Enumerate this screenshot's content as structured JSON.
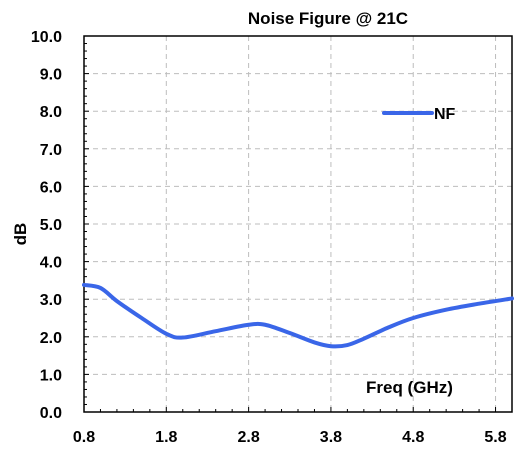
{
  "chart_data": {
    "type": "line",
    "title": "Noise Figure  @ 21C",
    "xlabel": "Freq (GHz)",
    "ylabel": "dB",
    "xlim": [
      0.8,
      6.0
    ],
    "ylim": [
      0.0,
      10.0
    ],
    "x_ticks": [
      0.8,
      1.8,
      2.8,
      3.8,
      4.8,
      5.8
    ],
    "x_tick_labels": [
      "0.8",
      "1.8",
      "2.8",
      "3.8",
      "4.8",
      "5.8"
    ],
    "y_ticks": [
      0,
      1,
      2,
      3,
      4,
      5,
      6,
      7,
      8,
      9,
      10
    ],
    "y_tick_labels": [
      "0.0",
      "1.0",
      "2.0",
      "3.0",
      "4.0",
      "5.0",
      "6.0",
      "7.0",
      "8.0",
      "9.0",
      "10.0"
    ],
    "grid": true,
    "legend": "top-right",
    "series": [
      {
        "name": "NF",
        "color": "#3a66e8",
        "x": [
          0.8,
          1.0,
          1.2,
          1.5,
          1.8,
          2.0,
          2.4,
          2.8,
          3.0,
          3.3,
          3.6,
          3.8,
          4.0,
          4.2,
          4.5,
          4.8,
          5.2,
          5.6,
          6.0
        ],
        "y": [
          3.38,
          3.3,
          2.95,
          2.5,
          2.08,
          1.98,
          2.15,
          2.32,
          2.32,
          2.1,
          1.85,
          1.75,
          1.78,
          1.95,
          2.25,
          2.5,
          2.72,
          2.88,
          3.02
        ]
      }
    ]
  }
}
